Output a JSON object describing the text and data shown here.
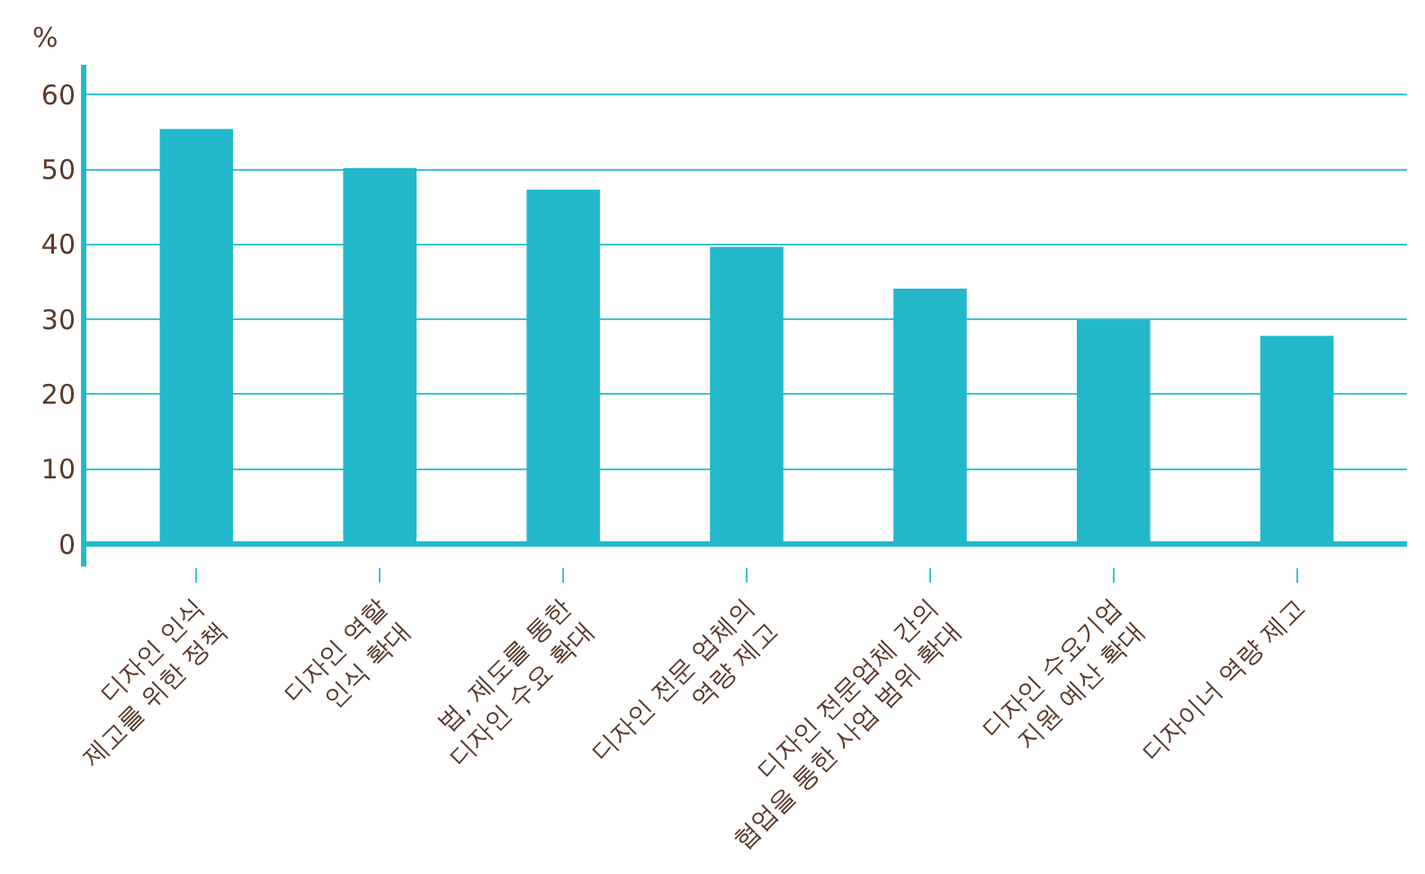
{
  "chart_data": {
    "type": "bar",
    "ylabel": "%",
    "categories": [
      "디자인 인식\n제고를 위한 정책",
      "디자인 역할\n인식 확대",
      "법, 제도를 통한\n디자인 수요 확대",
      "디자인 전문 업체의\n역량 제고",
      "디자인 전문업체 간의\n협업을 통한 사업 범위 확대",
      "디자인 수요기업\n지원 예산 확대",
      "디자이너 역량 제고"
    ],
    "values": [
      55.4,
      50.2,
      47.3,
      39.7,
      34.1,
      29.9,
      27.8
    ],
    "color": "#23b8c9",
    "ylim": [
      -3,
      64
    ],
    "yticks": [
      0,
      10,
      20,
      30,
      40,
      50,
      60
    ],
    "grid": "y"
  }
}
